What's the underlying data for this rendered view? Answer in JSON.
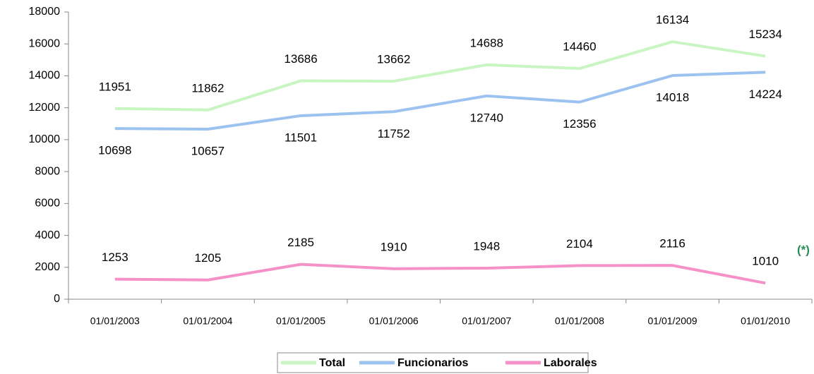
{
  "chart_data": {
    "type": "line",
    "categories": [
      "01/01/2003",
      "01/01/2004",
      "01/01/2005",
      "01/01/2006",
      "01/01/2007",
      "01/01/2008",
      "01/01/2009",
      "01/01/2010"
    ],
    "series": [
      {
        "name": "Total",
        "color": "#c8f5c2",
        "values": [
          11951,
          11862,
          13686,
          13662,
          14688,
          14460,
          16134,
          15234
        ]
      },
      {
        "name": "Funcionarios",
        "color": "#9cc3f0",
        "values": [
          10698,
          10657,
          11501,
          11752,
          12740,
          12356,
          14018,
          14224
        ]
      },
      {
        "name": "Laborales",
        "color": "#f590c8",
        "values": [
          1253,
          1205,
          2185,
          1910,
          1948,
          2104,
          2116,
          1010
        ]
      }
    ],
    "ylim": [
      0,
      18000
    ],
    "yticks": [
      0,
      2000,
      4000,
      6000,
      8000,
      10000,
      12000,
      14000,
      16000,
      18000
    ],
    "grid": false,
    "legend": "bottom",
    "annotation": "(*)"
  }
}
